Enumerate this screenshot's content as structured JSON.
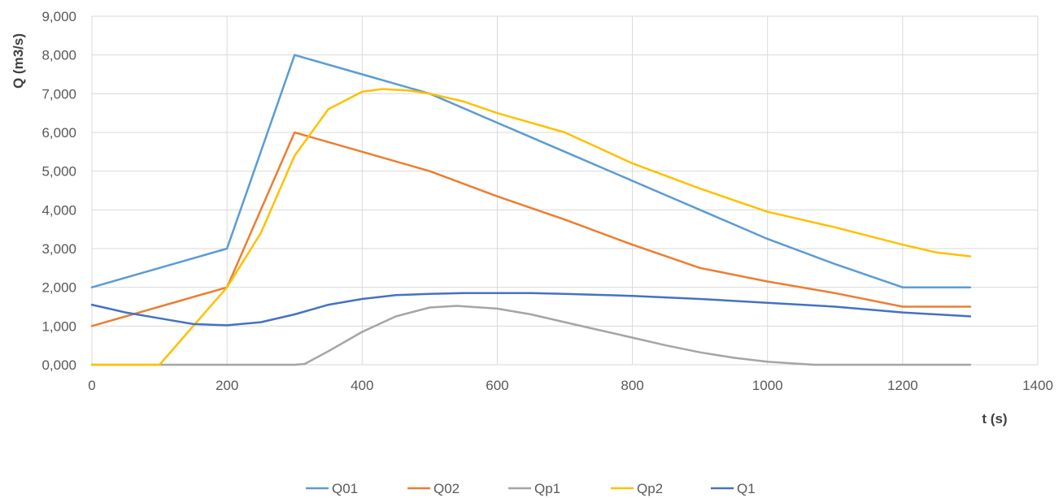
{
  "chart_data": {
    "type": "line",
    "title": "",
    "xlabel": "t (s)",
    "ylabel": "Q (m3/s)",
    "xlim": [
      0,
      1400
    ],
    "ylim": [
      0,
      9
    ],
    "x_ticks": [
      "0",
      "200",
      "400",
      "600",
      "800",
      "1000",
      "1200",
      "1400"
    ],
    "y_ticks": [
      "0,000",
      "1,000",
      "2,000",
      "3,000",
      "4,000",
      "5,000",
      "6,000",
      "7,000",
      "8,000",
      "9,000"
    ],
    "grid": true,
    "legend_position": "bottom",
    "series": [
      {
        "name": "Q01",
        "color": "#5B9BD5",
        "points": [
          [
            0,
            2.0
          ],
          [
            100,
            2.5
          ],
          [
            200,
            3.0
          ],
          [
            300,
            8.0
          ],
          [
            400,
            7.5
          ],
          [
            500,
            7.0
          ],
          [
            600,
            6.25
          ],
          [
            700,
            5.5
          ],
          [
            800,
            4.75
          ],
          [
            900,
            4.0
          ],
          [
            1000,
            3.25
          ],
          [
            1100,
            2.6
          ],
          [
            1200,
            2.0
          ],
          [
            1300,
            2.0
          ]
        ]
      },
      {
        "name": "Q02",
        "color": "#ED7D31",
        "points": [
          [
            0,
            1.0
          ],
          [
            100,
            1.5
          ],
          [
            200,
            2.0
          ],
          [
            300,
            6.0
          ],
          [
            400,
            5.5
          ],
          [
            500,
            5.0
          ],
          [
            600,
            4.35
          ],
          [
            700,
            3.75
          ],
          [
            800,
            3.1
          ],
          [
            900,
            2.5
          ],
          [
            1000,
            2.15
          ],
          [
            1100,
            1.85
          ],
          [
            1200,
            1.5
          ],
          [
            1300,
            1.5
          ]
        ]
      },
      {
        "name": "Qp1",
        "color": "#A5A5A5",
        "points": [
          [
            0,
            0
          ],
          [
            300,
            0
          ],
          [
            315,
            0.02
          ],
          [
            350,
            0.35
          ],
          [
            400,
            0.85
          ],
          [
            450,
            1.25
          ],
          [
            500,
            1.48
          ],
          [
            540,
            1.52
          ],
          [
            600,
            1.45
          ],
          [
            650,
            1.3
          ],
          [
            700,
            1.1
          ],
          [
            750,
            0.9
          ],
          [
            800,
            0.7
          ],
          [
            850,
            0.5
          ],
          [
            900,
            0.32
          ],
          [
            950,
            0.18
          ],
          [
            1000,
            0.08
          ],
          [
            1050,
            0.02
          ],
          [
            1070,
            0
          ],
          [
            1300,
            0
          ]
        ]
      },
      {
        "name": "Qp2",
        "color": "#FFC000",
        "points": [
          [
            0,
            0
          ],
          [
            100,
            0
          ],
          [
            150,
            1.0
          ],
          [
            200,
            2.0
          ],
          [
            250,
            3.4
          ],
          [
            300,
            5.4
          ],
          [
            350,
            6.6
          ],
          [
            400,
            7.05
          ],
          [
            430,
            7.12
          ],
          [
            470,
            7.08
          ],
          [
            500,
            7.0
          ],
          [
            550,
            6.8
          ],
          [
            600,
            6.5
          ],
          [
            700,
            6.0
          ],
          [
            800,
            5.2
          ],
          [
            900,
            4.55
          ],
          [
            1000,
            3.95
          ],
          [
            1100,
            3.55
          ],
          [
            1200,
            3.1
          ],
          [
            1250,
            2.9
          ],
          [
            1300,
            2.8
          ]
        ]
      },
      {
        "name": "Q1",
        "color": "#4472C4",
        "points": [
          [
            0,
            1.55
          ],
          [
            50,
            1.35
          ],
          [
            100,
            1.2
          ],
          [
            150,
            1.05
          ],
          [
            200,
            1.02
          ],
          [
            250,
            1.1
          ],
          [
            300,
            1.3
          ],
          [
            350,
            1.55
          ],
          [
            400,
            1.7
          ],
          [
            450,
            1.8
          ],
          [
            500,
            1.83
          ],
          [
            550,
            1.85
          ],
          [
            600,
            1.85
          ],
          [
            650,
            1.85
          ],
          [
            700,
            1.83
          ],
          [
            800,
            1.78
          ],
          [
            900,
            1.7
          ],
          [
            1000,
            1.6
          ],
          [
            1100,
            1.5
          ],
          [
            1200,
            1.35
          ],
          [
            1300,
            1.25
          ]
        ]
      }
    ]
  }
}
